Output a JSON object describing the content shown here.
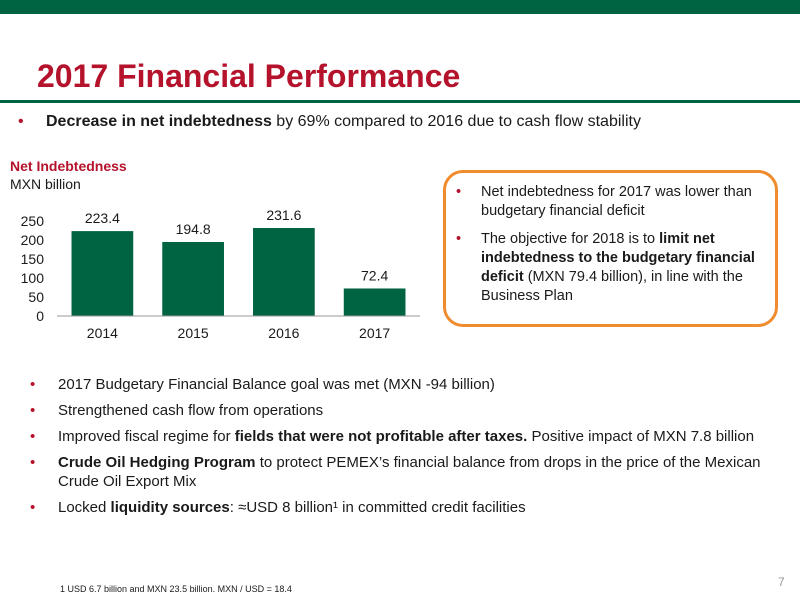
{
  "title": "2017 Financial Performance",
  "main_bullet": {
    "bold": "Decrease in net indebtedness",
    "rest": " by 69% compared to 2016 due to cash flow stability"
  },
  "chart_data": {
    "type": "bar",
    "title": "Net Indebtedness",
    "unit": "MXN billion",
    "categories": [
      "2014",
      "2015",
      "2016",
      "2017"
    ],
    "values": [
      223.4,
      194.8,
      231.6,
      72.4
    ],
    "value_labels": [
      "223.4",
      "194.8",
      "231.6",
      "72.4"
    ],
    "y_ticks": [
      0,
      50,
      100,
      150,
      200,
      250
    ],
    "ylim": [
      0,
      250
    ],
    "bar_color": "#006341",
    "grid": false,
    "legend": "none"
  },
  "callout": {
    "item1": "Net indebtedness for 2017 was lower than budgetary financial deficit",
    "item2_pre": "The objective for 2018 is to ",
    "item2_bold": "limit net indebtedness to the budgetary financial deficit",
    "item2_post": " (MXN 79.4 billion), in line with the Business Plan"
  },
  "bullets": {
    "b1": "2017 Budgetary Financial Balance goal was met (MXN -94 billion)",
    "b2": "Strengthened cash flow from operations",
    "b3_pre": "Improved fiscal regime for ",
    "b3_bold": "fields that were not profitable after taxes.",
    "b3_post": " Positive impact of MXN 7.8 billion",
    "b4_bold": "Crude Oil Hedging Program",
    "b4_post": " to protect PEMEX’s financial balance from drops in the price of the Mexican Crude Oil Export Mix",
    "b5_pre": "Locked ",
    "b5_bold": "liquidity sources",
    "b5_post": ": ≈USD 8 billion¹ in committed credit facilities"
  },
  "footnote": "1   USD 6.7 billion and MXN 23.5 billion. MXN / USD = 18.4",
  "page_number": "7",
  "bullet_symbol": "•",
  "colors": {
    "brand_green": "#006341",
    "accent_red": "#b5122b",
    "callout_orange": "#f08c2e"
  }
}
